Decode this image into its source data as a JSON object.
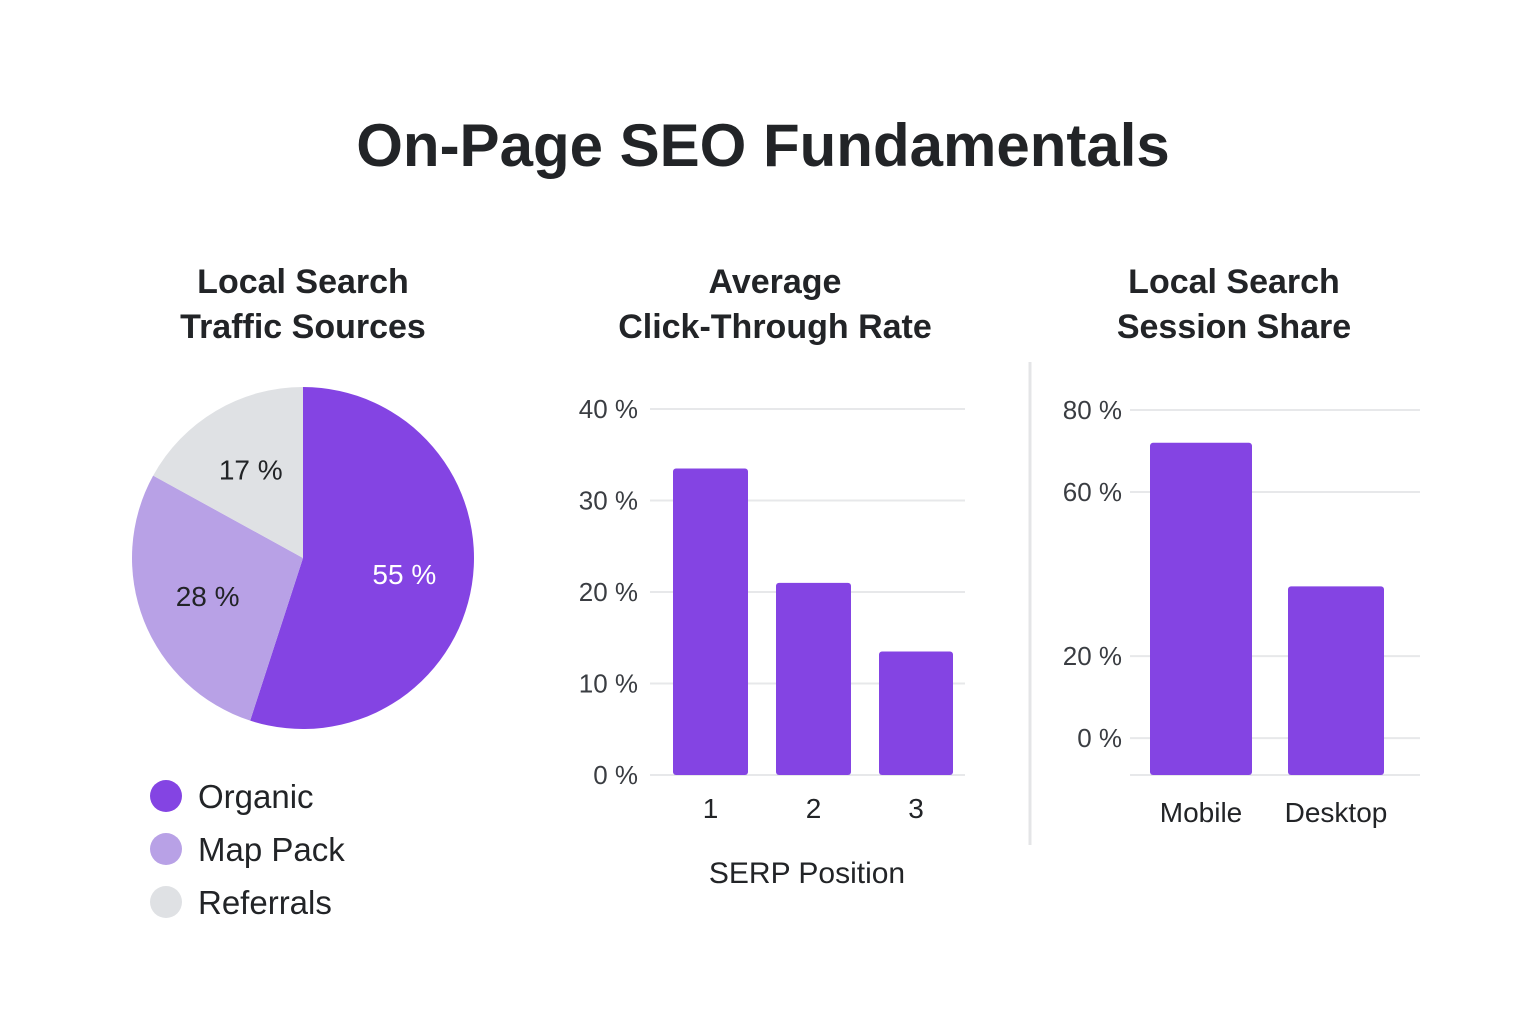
{
  "page": {
    "title": "On-Page SEO Fundamentals"
  },
  "colors": {
    "purple": "#8444E3",
    "lavender": "#B8A1E6",
    "light_gray": "#DFE1E4",
    "grid": "#E7E8EA",
    "text": "#222427"
  },
  "chart_data": [
    {
      "type": "pie",
      "title_lines": [
        "Local Search",
        "Traffic Sources"
      ],
      "slices": [
        {
          "name": "Organic",
          "value": 55,
          "label": "55 %",
          "color": "#8444E3",
          "label_color": "#ffffff"
        },
        {
          "name": "Map Pack",
          "value": 28,
          "label": "28 %",
          "color": "#B8A1E6",
          "label_color": "#222427"
        },
        {
          "name": "Referrals",
          "value": 17,
          "label": "17 %",
          "color": "#DFE1E4",
          "label_color": "#222427"
        }
      ],
      "legend": [
        "Organic",
        "Map Pack",
        "Referrals"
      ],
      "legend_position": "bottom"
    },
    {
      "type": "bar",
      "title_lines": [
        "Average",
        "Click-Through Rate"
      ],
      "categories": [
        "1",
        "2",
        "3"
      ],
      "values": [
        33.5,
        21,
        13.5
      ],
      "xlabel": "SERP Position",
      "ylabel": "",
      "ylim": [
        0,
        40
      ],
      "yticks": [
        0,
        10,
        20,
        30,
        40
      ],
      "ytick_labels": [
        "0 %",
        "10 %",
        "20 %",
        "30 %",
        "40 %"
      ],
      "grid": true,
      "color": "#8444E3"
    },
    {
      "type": "bar",
      "title_lines": [
        "Local Search",
        "Session Share"
      ],
      "categories": [
        "Mobile",
        "Desktop"
      ],
      "values": [
        72,
        37
      ],
      "xlabel": "",
      "ylabel": "",
      "ylim": [
        -9,
        80
      ],
      "yticks": [
        0,
        20,
        60,
        80
      ],
      "ytick_labels": [
        "0 %",
        "20 %",
        "60 %",
        "80 %"
      ],
      "grid": true,
      "color": "#8444E3"
    }
  ]
}
